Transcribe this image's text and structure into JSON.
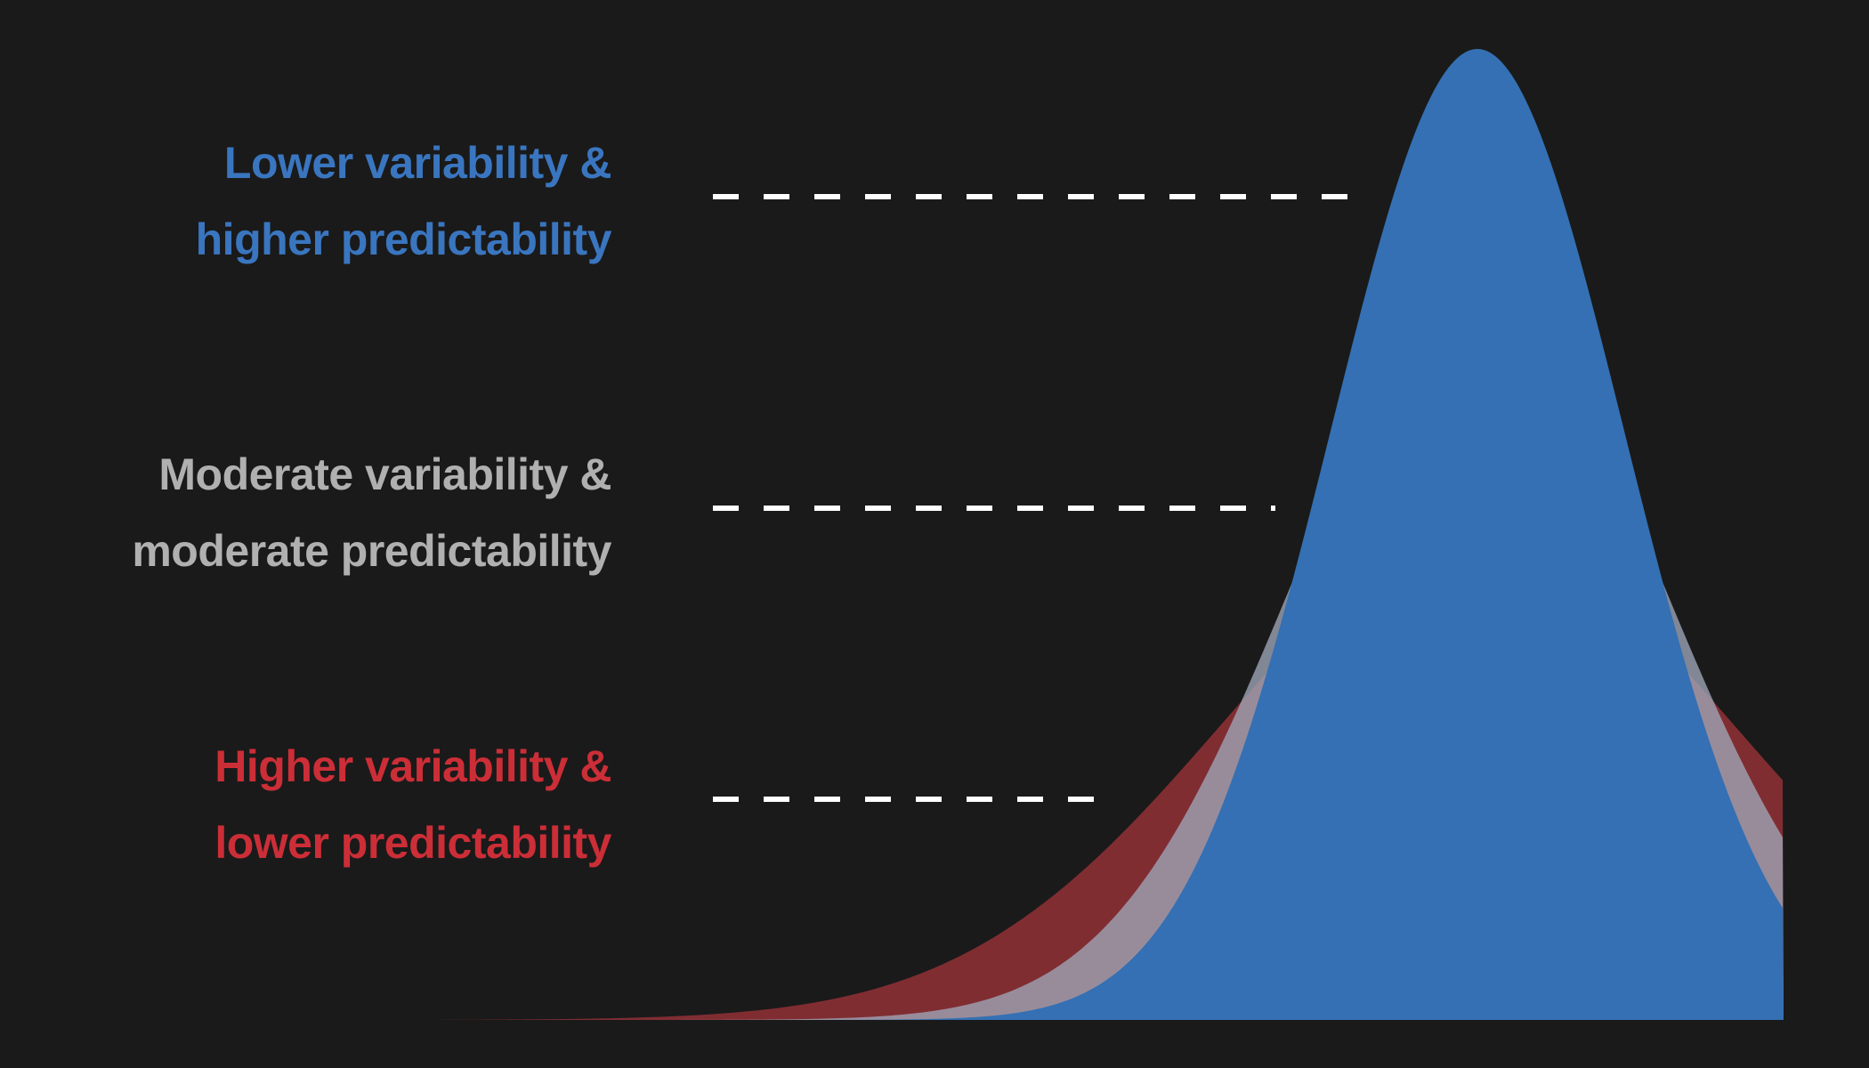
{
  "labels": {
    "low": {
      "line1": "Lower variability &",
      "line2": "higher predictability",
      "color": "#3a76c0"
    },
    "moderate": {
      "line1": "Moderate variability &",
      "line2": "moderate predictability",
      "color": "#b0b0b0"
    },
    "high": {
      "line1": "Higher variability &",
      "line2": "lower predictability",
      "color": "#cc2e37"
    }
  },
  "chart_data": {
    "type": "area",
    "title": "",
    "xlabel": "",
    "ylabel": "",
    "series": [
      {
        "distribution": "normal",
        "mean": 0,
        "sd": 1.0,
        "peak": 1.0,
        "color": "#3470b3"
      },
      {
        "distribution": "normal",
        "mean": 0,
        "sd": 1.25,
        "peak": 0.75,
        "color": "#9fa6b8"
      },
      {
        "distribution": "normal",
        "mean": 0,
        "sd": 1.75,
        "peak": 0.5,
        "color": "#a8353c"
      }
    ],
    "background": "#1a1a1a",
    "dash_color": "#ffffff"
  }
}
